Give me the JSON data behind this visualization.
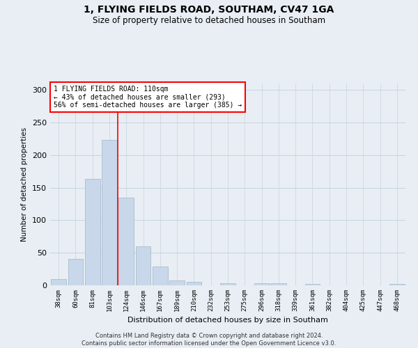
{
  "title": "1, FLYING FIELDS ROAD, SOUTHAM, CV47 1GA",
  "subtitle": "Size of property relative to detached houses in Southam",
  "xlabel": "Distribution of detached houses by size in Southam",
  "ylabel": "Number of detached properties",
  "bar_color": "#c8d8ea",
  "bar_edge_color": "#aabbcc",
  "background_color": "#e8eef4",
  "plot_bg_color": "#e8eef4",
  "categories": [
    "38sqm",
    "60sqm",
    "81sqm",
    "103sqm",
    "124sqm",
    "146sqm",
    "167sqm",
    "189sqm",
    "210sqm",
    "232sqm",
    "253sqm",
    "275sqm",
    "296sqm",
    "318sqm",
    "339sqm",
    "361sqm",
    "382sqm",
    "404sqm",
    "425sqm",
    "447sqm",
    "468sqm"
  ],
  "values": [
    10,
    41,
    164,
    223,
    135,
    60,
    29,
    8,
    5,
    0,
    3,
    0,
    3,
    3,
    0,
    2,
    0,
    0,
    0,
    0,
    2
  ],
  "ylim": [
    0,
    310
  ],
  "yticks": [
    0,
    50,
    100,
    150,
    200,
    250,
    300
  ],
  "red_line_x": 3.5,
  "annotation_text": "1 FLYING FIELDS ROAD: 110sqm\n← 43% of detached houses are smaller (293)\n56% of semi-detached houses are larger (385) →",
  "annotation_box_color": "white",
  "annotation_box_edge_color": "red",
  "footer_text": "Contains HM Land Registry data © Crown copyright and database right 2024.\nContains public sector information licensed under the Open Government Licence v3.0.",
  "grid_color": "#c8d4de"
}
